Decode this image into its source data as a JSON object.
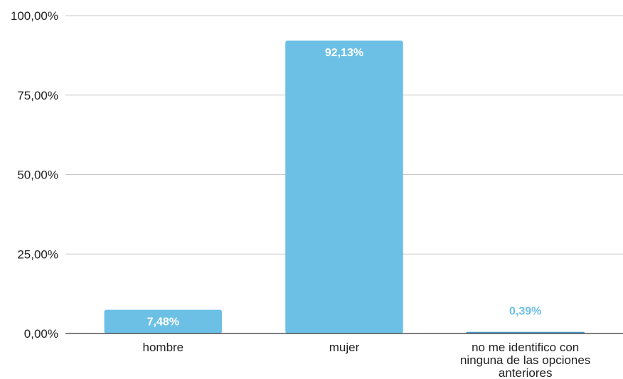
{
  "chart_data": {
    "type": "bar",
    "categories": [
      [
        "hombre"
      ],
      [
        "mujer"
      ],
      [
        "no me identifico con",
        "ninguna de las opciones",
        "anteriores"
      ]
    ],
    "values": [
      7.48,
      92.13,
      0.39
    ],
    "data_labels": [
      "7,48%",
      "92,13%",
      "0,39%"
    ],
    "y_ticks": [
      0,
      25,
      50,
      75,
      100
    ],
    "y_tick_labels": [
      "0,00%",
      "25,00%",
      "50,00%",
      "75,00%",
      "100,00%"
    ],
    "ylim": [
      0,
      100
    ],
    "grid": true,
    "legend": "none",
    "colors": {
      "bar": "#6cc0e5",
      "bar_outline": "#3a8fb8",
      "label_outside": "#6cc0e5"
    }
  }
}
